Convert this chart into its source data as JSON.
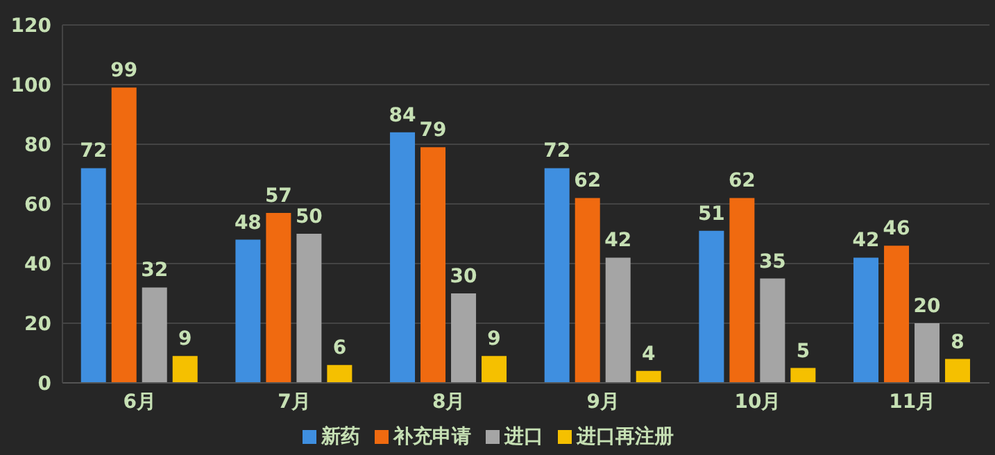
{
  "chart_data": {
    "type": "bar",
    "categories": [
      "6月",
      "7月",
      "8月",
      "9月",
      "10月",
      "11月"
    ],
    "series": [
      {
        "name": "新药",
        "color": "#3f8fe0",
        "values": [
          72,
          48,
          84,
          72,
          51,
          42
        ]
      },
      {
        "name": "补充申请",
        "color": "#f06a10",
        "values": [
          99,
          57,
          79,
          62,
          62,
          46
        ]
      },
      {
        "name": "进口",
        "color": "#a5a5a5",
        "values": [
          32,
          50,
          30,
          42,
          35,
          20
        ]
      },
      {
        "name": "进口再注册",
        "color": "#f5c000",
        "values": [
          9,
          6,
          9,
          4,
          5,
          8
        ]
      }
    ],
    "ylim": [
      0,
      120
    ],
    "yticks": [
      0,
      20,
      40,
      60,
      80,
      100,
      120
    ],
    "grid": "y",
    "legend": "bottom",
    "data_labels": true
  }
}
